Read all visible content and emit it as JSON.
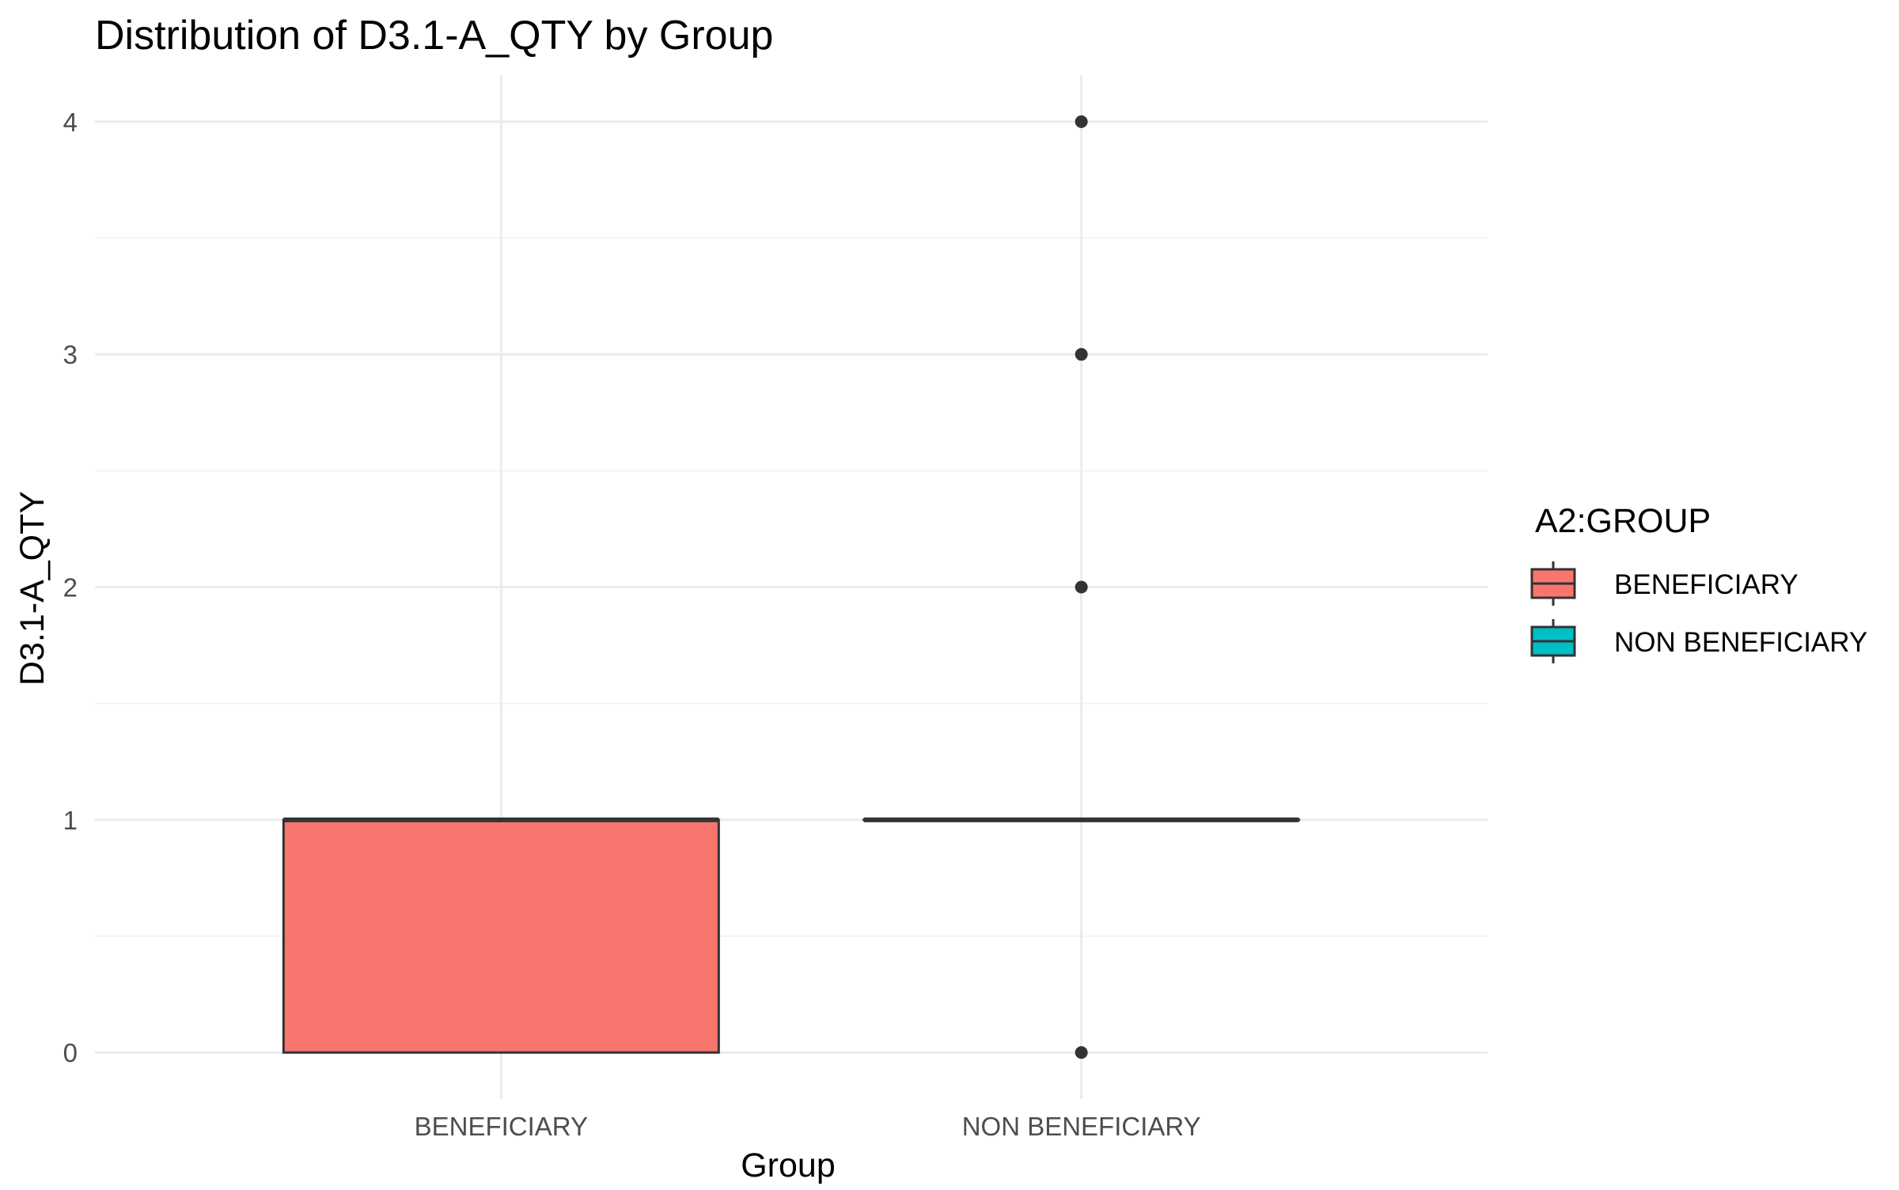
{
  "chart_data": {
    "type": "boxplot",
    "title": "Distribution of D3.1-A_QTY by Group",
    "xlabel": "Group",
    "ylabel": "D3.1-A_QTY",
    "categories": [
      "BENEFICIARY",
      "NON BENEFICIARY"
    ],
    "ylim": [
      -0.2,
      4.2
    ],
    "y_ticks": [
      0,
      1,
      2,
      3,
      4
    ],
    "grid": true,
    "legend": {
      "title": "A2:GROUP",
      "placement": "right",
      "entries": [
        "BENEFICIARY",
        "NON BENEFICIARY"
      ]
    },
    "series": [
      {
        "name": "BENEFICIARY",
        "color": "#F8766D",
        "q1": 0,
        "median": 1,
        "q3": 1,
        "whisker_low": 0,
        "whisker_high": 1,
        "outliers": []
      },
      {
        "name": "NON BENEFICIARY",
        "color": "#00BFC4",
        "q1": 1,
        "median": 1,
        "q3": 1,
        "whisker_low": 1,
        "whisker_high": 1,
        "outliers": [
          0,
          2,
          3,
          4
        ]
      }
    ]
  }
}
